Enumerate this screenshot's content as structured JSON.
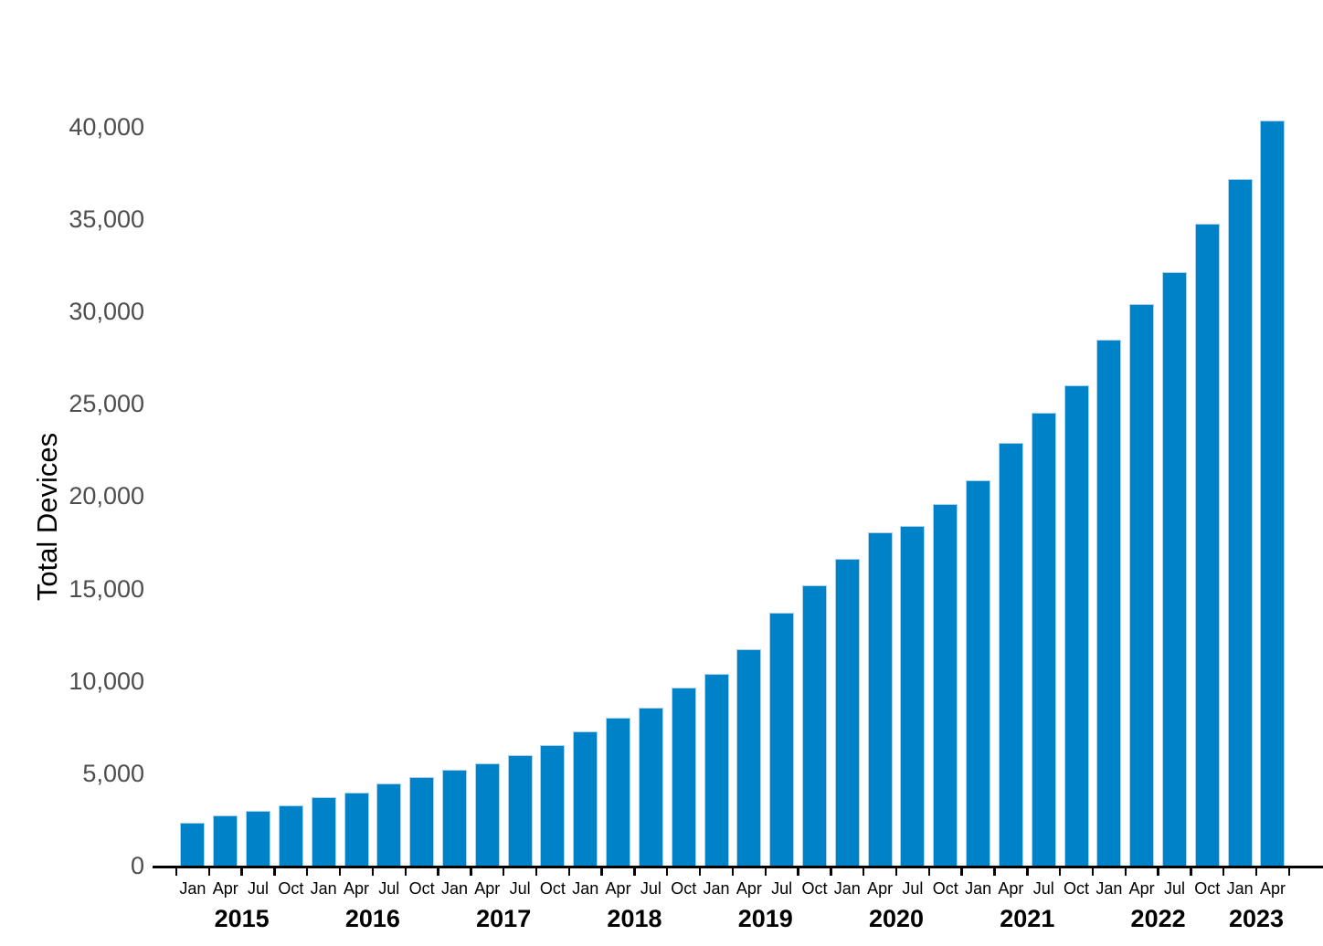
{
  "chart_data": {
    "type": "bar",
    "title": "",
    "xlabel": "",
    "ylabel": "Total Devices",
    "ylim": [
      0,
      41500
    ],
    "grid": false,
    "legend": null,
    "y_ticks": [
      0,
      5000,
      10000,
      15000,
      20000,
      25000,
      30000,
      35000,
      40000
    ],
    "y_tick_labels": [
      "0",
      "5,000",
      "10,000",
      "15,000",
      "20,000",
      "25,000",
      "30,000",
      "35,000",
      "40,000"
    ],
    "categories": [
      "Jan 2015",
      "Apr 2015",
      "Jul 2015",
      "Oct 2015",
      "Jan 2016",
      "Apr 2016",
      "Jul 2016",
      "Oct 2016",
      "Jan 2017",
      "Apr 2017",
      "Jul 2017",
      "Oct 2017",
      "Jan 2018",
      "Apr 2018",
      "Jul 2018",
      "Oct 2018",
      "Jan 2019",
      "Apr 2019",
      "Jul 2019",
      "Oct 2019",
      "Jan 2020",
      "Apr 2020",
      "Jul 2020",
      "Oct 2020",
      "Jan 2021",
      "Apr 2021",
      "Jul 2021",
      "Oct 2021",
      "Jan 2022",
      "Apr 2022",
      "Jul 2022",
      "Oct 2022",
      "Jan 2023",
      "Apr 2023"
    ],
    "month_labels": [
      "Jan",
      "Apr",
      "Jul",
      "Oct",
      "Jan",
      "Apr",
      "Jul",
      "Oct",
      "Jan",
      "Apr",
      "Jul",
      "Oct",
      "Jan",
      "Apr",
      "Jul",
      "Oct",
      "Jan",
      "Apr",
      "Jul",
      "Oct",
      "Jan",
      "Apr",
      "Jul",
      "Oct",
      "Jan",
      "Apr",
      "Jul",
      "Oct",
      "Jan",
      "Apr",
      "Jul",
      "Oct",
      "Jan",
      "Apr"
    ],
    "year_groups": [
      {
        "label": "2015",
        "first": 0,
        "last": 3
      },
      {
        "label": "2016",
        "first": 4,
        "last": 7
      },
      {
        "label": "2017",
        "first": 8,
        "last": 11
      },
      {
        "label": "2018",
        "first": 12,
        "last": 15
      },
      {
        "label": "2019",
        "first": 16,
        "last": 19
      },
      {
        "label": "2020",
        "first": 20,
        "last": 23
      },
      {
        "label": "2021",
        "first": 24,
        "last": 27
      },
      {
        "label": "2022",
        "first": 28,
        "last": 31
      },
      {
        "label": "2023",
        "first": 32,
        "last": 33
      }
    ],
    "values": [
      2350,
      2750,
      3000,
      3310,
      3750,
      3960,
      4470,
      4830,
      5210,
      5570,
      5990,
      6530,
      7300,
      8020,
      8600,
      9660,
      10390,
      11740,
      13730,
      15210,
      16620,
      18060,
      18400,
      19580,
      20900,
      22910,
      24560,
      26030,
      28480,
      30420,
      32150,
      34780,
      37200,
      40350
    ],
    "colors": {
      "background": "#ffffff",
      "bar_fill": "#0082c8",
      "bar_edge": "#abd2ec",
      "axis_line": "#000000",
      "tick_mark": "#000000",
      "y_tick_label": "#4d4d4d",
      "month_label": "#000000",
      "year_label": "#000000",
      "axis_title": "#000000"
    }
  }
}
